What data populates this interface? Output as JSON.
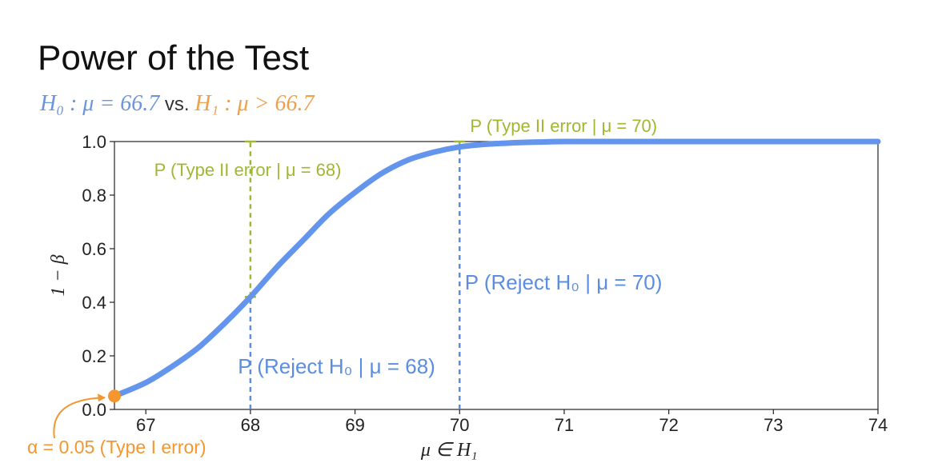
{
  "page": {
    "title": "Power of the Test",
    "h0_text": "H₀ : μ = 66.7",
    "vs_text": " vs. ",
    "h1_text": "H₁ : μ > 66.7"
  },
  "colors": {
    "power_curve": "#6495ED",
    "type2": "#9FB831",
    "type1": "#F5962E",
    "reject": "#5B8DE0",
    "text": "#222222"
  },
  "chart_data": {
    "type": "line",
    "title": "",
    "xlabel": "μ ∈ H₁",
    "ylabel": "1 − β",
    "xlim": [
      66.7,
      74
    ],
    "ylim": [
      0,
      1.0
    ],
    "x_ticks": [
      67,
      68,
      69,
      70,
      71,
      72,
      73,
      74
    ],
    "x_tick_labels": [
      "67",
      "68",
      "69",
      "70",
      "71",
      "72",
      "73",
      "74"
    ],
    "y_ticks": [
      0.0,
      0.2,
      0.4,
      0.6,
      0.8,
      1.0
    ],
    "y_tick_labels": [
      "0.0",
      "0.2",
      "0.4",
      "0.6",
      "0.8",
      "1.0"
    ],
    "grid": false,
    "series": [
      {
        "x": [
          66.7,
          67.0,
          67.25,
          67.5,
          67.75,
          68.0,
          68.25,
          68.5,
          68.75,
          69.0,
          69.25,
          69.5,
          69.75,
          70.0,
          70.25,
          70.5,
          70.75,
          71.0,
          71.5,
          72.0,
          73.0,
          74.0
        ],
        "values": [
          0.05,
          0.1,
          0.16,
          0.23,
          0.32,
          0.42,
          0.53,
          0.63,
          0.73,
          0.81,
          0.88,
          0.93,
          0.96,
          0.98,
          0.99,
          0.995,
          0.998,
          1.0,
          1.0,
          1.0,
          1.0,
          1.0
        ]
      }
    ],
    "annotations": [
      {
        "kind": "type2",
        "x": 68,
        "y_low": 0.42,
        "y_high": 1.0,
        "label": "P (Type II error | μ = 68)"
      },
      {
        "kind": "type2",
        "x": 70,
        "y_low": 0.98,
        "y_high": 1.0,
        "label": "P (Type II error | μ = 70)"
      },
      {
        "kind": "reject",
        "x": 68,
        "y_low": 0.0,
        "y_high": 0.42,
        "label": "P (Reject H₀ | μ = 68)"
      },
      {
        "kind": "reject",
        "x": 70,
        "y_low": 0.0,
        "y_high": 0.98,
        "label": "P (Reject H₀ | μ = 70)"
      },
      {
        "kind": "type1",
        "x": 66.7,
        "y": 0.05,
        "label": "α = 0.05 (Type I error)"
      }
    ]
  }
}
